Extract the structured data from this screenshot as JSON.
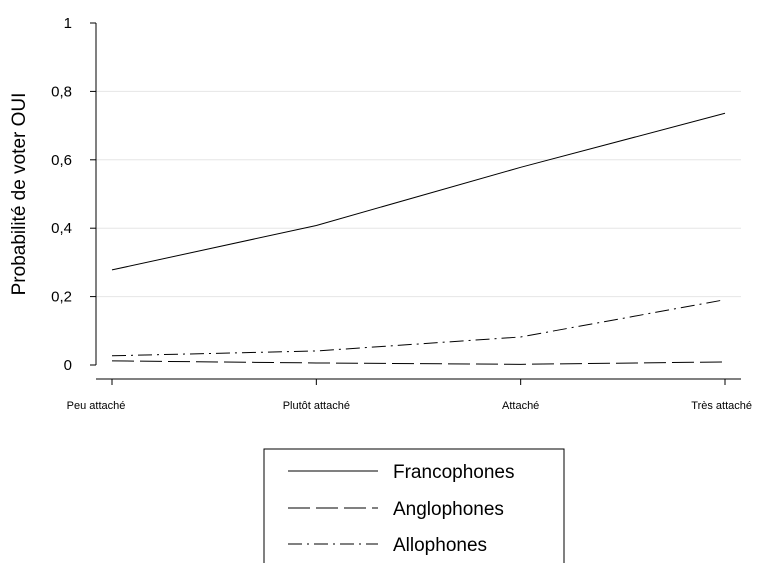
{
  "chart_data": {
    "type": "line",
    "title": "",
    "xlabel": "",
    "ylabel": "Probabilité de voter OUI",
    "categories": [
      "Peu attaché",
      "Plutôt attaché",
      "Attaché",
      "Très attaché"
    ],
    "yticks": [
      {
        "value": 0,
        "label": "0"
      },
      {
        "value": 0.2,
        "label": "0,2"
      },
      {
        "value": 0.4,
        "label": "0,4"
      },
      {
        "value": 0.6,
        "label": "0,6"
      },
      {
        "value": 0.8,
        "label": "0,8"
      },
      {
        "value": 1,
        "label": "1"
      }
    ],
    "ylim": [
      0,
      1
    ],
    "grid": true,
    "legend_position": "bottom",
    "series": [
      {
        "name": "Francophones",
        "values": [
          0.278,
          0.408,
          0.578,
          0.736
        ],
        "dash": "solid",
        "color": "#000000"
      },
      {
        "name": "Anglophones",
        "values": [
          0.012,
          0.006,
          0.002,
          0.009
        ],
        "dash": "dashed",
        "color": "#000000"
      },
      {
        "name": "Allophones",
        "values": [
          0.027,
          0.041,
          0.082,
          0.191
        ],
        "dash": "dashdot",
        "color": "#000000"
      }
    ]
  }
}
